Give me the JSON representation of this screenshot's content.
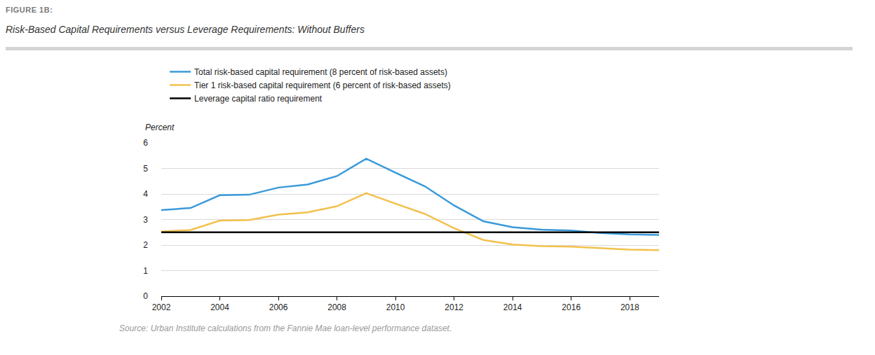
{
  "chart_data": {
    "type": "line",
    "figure_label": "FIGURE 1B:",
    "title": "Risk-Based Capital Requirements versus Leverage Requirements: Without Buffers",
    "source": "Source: Urban Institute calculations from the Fannie Mae loan-level performance dataset.",
    "ylabel": "Percent",
    "x": [
      2002,
      2003,
      2004,
      2005,
      2006,
      2007,
      2008,
      2009,
      2010,
      2011,
      2012,
      2013,
      2014,
      2015,
      2016,
      2017,
      2018,
      2019
    ],
    "series": [
      {
        "name": "Total risk-based capital requirement (8 percent of risk-based assets)",
        "color": "#3a9ad9",
        "values": [
          3.37,
          3.45,
          3.95,
          3.97,
          4.25,
          4.37,
          4.7,
          5.38,
          4.83,
          4.3,
          3.55,
          2.93,
          2.7,
          2.6,
          2.57,
          2.47,
          2.42,
          2.4
        ]
      },
      {
        "name": "Tier 1 risk-based capital requirement (6 percent of risk-based assets)",
        "color": "#f2c14e",
        "values": [
          2.53,
          2.59,
          2.96,
          2.98,
          3.19,
          3.28,
          3.52,
          4.03,
          3.62,
          3.22,
          2.66,
          2.2,
          2.02,
          1.96,
          1.94,
          1.87,
          1.82,
          1.8
        ]
      },
      {
        "name": "Leverage capital ratio requirement",
        "color": "#000000",
        "values": [
          2.5,
          2.5,
          2.5,
          2.5,
          2.5,
          2.5,
          2.5,
          2.5,
          2.5,
          2.5,
          2.5,
          2.5,
          2.5,
          2.5,
          2.5,
          2.5,
          2.5,
          2.5
        ]
      }
    ],
    "xlim": [
      2002,
      2019
    ],
    "xticks": [
      2002,
      2004,
      2006,
      2008,
      2010,
      2012,
      2014,
      2016,
      2018
    ],
    "ylim": [
      0,
      6
    ],
    "yticks": [
      0,
      1,
      2,
      3,
      4,
      5,
      6
    ],
    "grid": true,
    "legend": "top left"
  }
}
